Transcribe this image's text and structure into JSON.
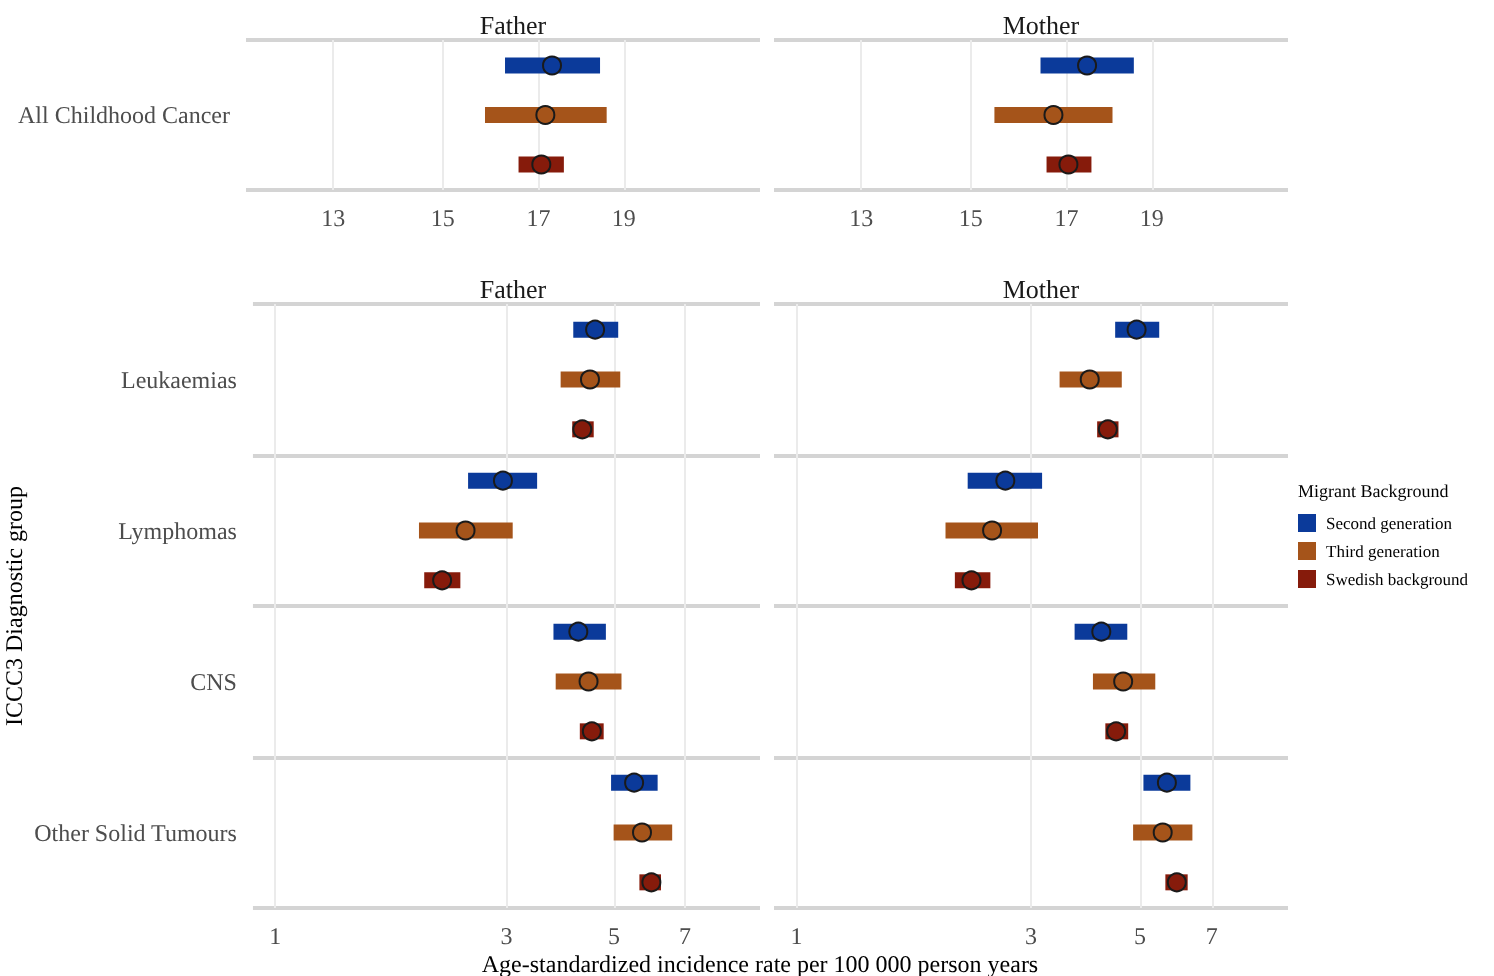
{
  "chart_data": [
    {
      "type": "scatter",
      "orientation": "horizontal",
      "title": "Father",
      "categories": [
        "All Childhood Cancer"
      ],
      "log": "x",
      "xlim": [
        11.6,
        22.7
      ],
      "xticks": [
        13,
        15,
        17,
        19
      ],
      "grid": true,
      "marker": "circle",
      "series": [
        {
          "color": "#0b3a9a",
          "values": [
            17.3
          ],
          "errors": [
            [
              16.27,
              18.42
            ]
          ]
        },
        {
          "color": "#a5541a",
          "values": [
            17.15
          ],
          "errors": [
            [
              15.85,
              18.58
            ]
          ]
        },
        {
          "color": "#861b0b",
          "values": [
            17.06
          ],
          "errors": [
            [
              16.56,
              17.57
            ]
          ]
        }
      ]
    },
    {
      "type": "scatter",
      "orientation": "horizontal",
      "title": "Mother",
      "categories": [
        null
      ],
      "log": "x",
      "xlim": [
        11.6,
        22.7
      ],
      "xticks": [
        13,
        15,
        17,
        19
      ],
      "grid": true,
      "marker": "circle",
      "tick_labels": "x",
      "series": [
        {
          "color": "#0b3a9a",
          "values": [
            17.46
          ],
          "errors": [
            [
              16.43,
              18.56
            ]
          ]
        },
        {
          "color": "#a5541a",
          "values": [
            16.71
          ],
          "errors": [
            [
              15.47,
              18.05
            ]
          ]
        },
        {
          "color": "#861b0b",
          "values": [
            17.04
          ],
          "errors": [
            [
              16.56,
              17.56
            ]
          ]
        }
      ]
    },
    {
      "type": "scatter",
      "orientation": "horizontal",
      "title": "Father",
      "xlabel": "Age-standardized incidence rate per 100 000 person years",
      "ylabel": "ICCC3 Diagnostic group",
      "categories": [
        "Leukaemias",
        "Lymphomas",
        "CNS",
        "Other Solid Tumours"
      ],
      "log": "x",
      "xlim": [
        0.9,
        10
      ],
      "xticks": [
        1,
        3,
        5,
        7
      ],
      "grid": true,
      "marker": "circle",
      "series": [
        {
          "color": "#0b3a9a",
          "values": [
            4.57,
            2.95,
            4.22,
            5.5
          ],
          "errors": [
            [
              4.12,
              5.1
            ],
            [
              2.5,
              3.47
            ],
            [
              3.75,
              4.81
            ],
            [
              4.93,
              6.15
            ]
          ]
        },
        {
          "color": "#a5541a",
          "values": [
            4.46,
            2.47,
            4.43,
            5.71
          ],
          "errors": [
            [
              3.88,
              5.15
            ],
            [
              1.98,
              3.09
            ],
            [
              3.79,
              5.18
            ],
            [
              4.99,
              6.59
            ]
          ]
        },
        {
          "color": "#861b0b",
          "values": [
            4.3,
            2.21,
            4.5,
            5.97
          ],
          "errors": [
            [
              4.1,
              4.54
            ],
            [
              2.03,
              2.41
            ],
            [
              4.25,
              4.76
            ],
            [
              5.64,
              6.25
            ]
          ]
        }
      ]
    },
    {
      "type": "scatter",
      "orientation": "horizontal",
      "title": "Mother",
      "categories": [
        null,
        null,
        null,
        null
      ],
      "log": "x",
      "xlim": [
        0.9,
        10
      ],
      "xticks": [
        1,
        3,
        5,
        7
      ],
      "grid": true,
      "marker": "circle",
      "tick_labels": "x",
      "legend": "right",
      "legend_title": "Migrant Background",
      "series": [
        {
          "name": "Second generation",
          "color": "#0b3a9a",
          "values": [
            4.92,
            2.66,
            4.17,
            5.67
          ],
          "errors": [
            [
              4.45,
              5.47
            ],
            [
              2.23,
              3.16
            ],
            [
              3.68,
              4.71
            ],
            [
              5.08,
              6.33
            ]
          ]
        },
        {
          "name": "Third generation",
          "color": "#a5541a",
          "values": [
            3.95,
            2.5,
            4.62,
            5.56
          ],
          "errors": [
            [
              3.43,
              4.59
            ],
            [
              2.01,
              3.1
            ],
            [
              4.01,
              5.37
            ],
            [
              4.84,
              6.39
            ]
          ]
        },
        {
          "name": "Swedish background",
          "color": "#861b0b",
          "values": [
            4.3,
            2.27,
            4.47,
            5.94
          ],
          "errors": [
            [
              4.09,
              4.52
            ],
            [
              2.1,
              2.48
            ],
            [
              4.25,
              4.73
            ],
            [
              5.63,
              6.25
            ]
          ]
        }
      ]
    }
  ]
}
